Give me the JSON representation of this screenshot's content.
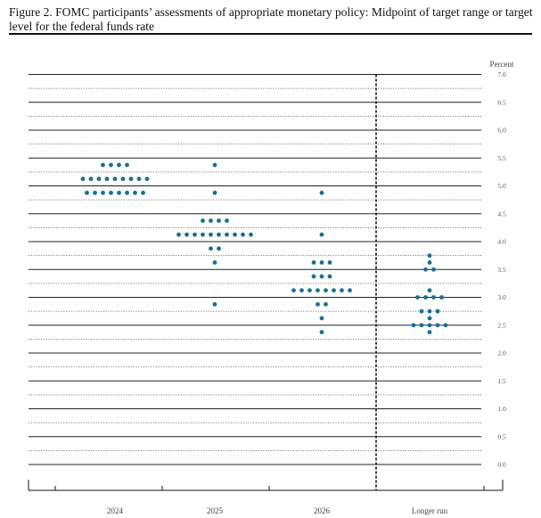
{
  "figure": {
    "caption": "Figure 2. FOMC participants’ assessments of appropriate monetary policy: Midpoint of target range or target level for the federal funds rate"
  },
  "chart_data": {
    "type": "scatter",
    "title": "Figure 2. FOMC participants’ assessments of appropriate monetary policy: Midpoint of target range or target level for the federal funds rate",
    "ylabel": "Percent",
    "xlabel": "",
    "ylim": [
      0,
      7
    ],
    "yticks": [
      "0.0",
      "0.5",
      "1.0",
      "1.5",
      "2.0",
      "2.5",
      "3.0",
      "3.5",
      "4.0",
      "4.5",
      "5.0",
      "5.5",
      "6.0",
      "6.5",
      "7.0"
    ],
    "categories": [
      "2024",
      "2025",
      "2026",
      "Longer run"
    ],
    "grid": "solid lines at whole and half percents, dotted lines at quarter percents",
    "dot_color": "#1a6e93",
    "groups": [
      {
        "category": "2024",
        "dots": [
          {
            "y": 5.375,
            "n": 4
          },
          {
            "y": 5.125,
            "n": 9
          },
          {
            "y": 4.875,
            "n": 8
          }
        ]
      },
      {
        "category": "2025",
        "dots": [
          {
            "y": 5.375,
            "n": 1
          },
          {
            "y": 4.875,
            "n": 1
          },
          {
            "y": 4.375,
            "n": 4
          },
          {
            "y": 4.125,
            "n": 10
          },
          {
            "y": 3.875,
            "n": 2
          },
          {
            "y": 3.625,
            "n": 1
          },
          {
            "y": 2.875,
            "n": 1
          }
        ]
      },
      {
        "category": "2026",
        "dots": [
          {
            "y": 4.875,
            "n": 1
          },
          {
            "y": 4.125,
            "n": 1
          },
          {
            "y": 3.625,
            "n": 3
          },
          {
            "y": 3.375,
            "n": 3
          },
          {
            "y": 3.125,
            "n": 8
          },
          {
            "y": 2.875,
            "n": 2
          },
          {
            "y": 2.625,
            "n": 1
          },
          {
            "y": 2.375,
            "n": 1
          }
        ]
      },
      {
        "category": "Longer run",
        "dots": [
          {
            "y": 3.75,
            "n": 1
          },
          {
            "y": 3.625,
            "n": 1
          },
          {
            "y": 3.5,
            "n": 2
          },
          {
            "y": 3.125,
            "n": 1
          },
          {
            "y": 3.0,
            "n": 4
          },
          {
            "y": 2.75,
            "n": 3
          },
          {
            "y": 2.625,
            "n": 1
          },
          {
            "y": 2.5,
            "n": 5
          },
          {
            "y": 2.375,
            "n": 1
          }
        ]
      }
    ]
  }
}
